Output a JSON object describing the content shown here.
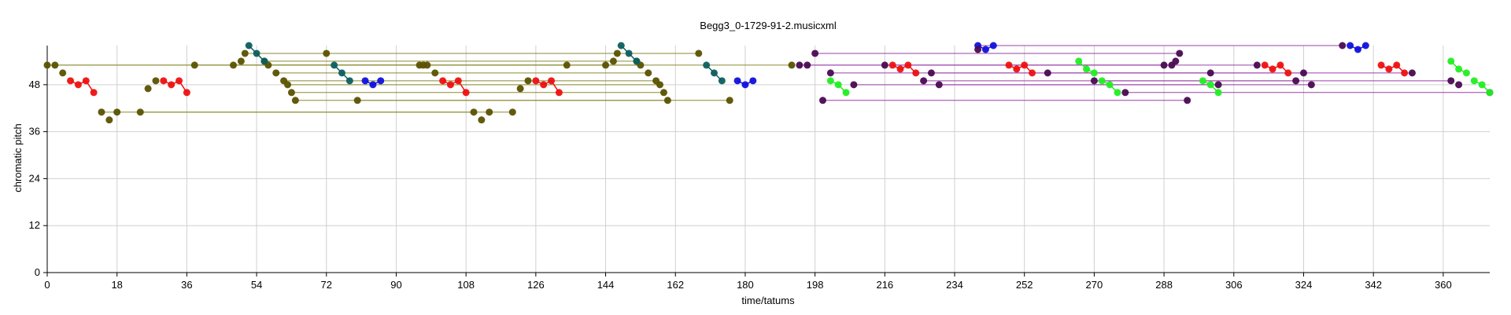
{
  "chart_data": {
    "type": "scatter",
    "title": "Begg3_0-1729-91-2.musicxml",
    "xlabel": "time/tatums",
    "ylabel": "chromatic pitch",
    "xlim": [
      0,
      372
    ],
    "ylim": [
      0,
      58
    ],
    "xticks": [
      0,
      18,
      36,
      54,
      72,
      90,
      108,
      126,
      144,
      162,
      180,
      198,
      216,
      234,
      252,
      270,
      288,
      306,
      324,
      342,
      360
    ],
    "yticks": [
      0,
      12,
      24,
      36,
      48
    ],
    "grid": true,
    "colors": {
      "olive": "#5a5200",
      "olive_line": "#8a8a30",
      "teal": "#0c5f5f",
      "red": "#ee1111",
      "blue": "#1111dd",
      "purple": "#4a0a52",
      "purple_line": "#9a40a8",
      "green": "#22ee22"
    },
    "series": [
      {
        "color_key": "olive",
        "points": [
          [
            0,
            53
          ],
          [
            2,
            53
          ],
          [
            4,
            51
          ],
          [
            14,
            41
          ],
          [
            16,
            39
          ],
          [
            18,
            41
          ],
          [
            24,
            41
          ],
          [
            26,
            47
          ],
          [
            28,
            49
          ],
          [
            38,
            53
          ],
          [
            48,
            53
          ],
          [
            50,
            54
          ],
          [
            51,
            56
          ],
          [
            56,
            54
          ],
          [
            57,
            53
          ],
          [
            59,
            51
          ],
          [
            61,
            49
          ],
          [
            62,
            48
          ],
          [
            63,
            46
          ],
          [
            64,
            44
          ],
          [
            72,
            56
          ],
          [
            80,
            44
          ],
          [
            96,
            53
          ],
          [
            97,
            53
          ],
          [
            98,
            53
          ],
          [
            100,
            51
          ],
          [
            110,
            41
          ],
          [
            112,
            39
          ],
          [
            114,
            41
          ],
          [
            120,
            41
          ],
          [
            122,
            47
          ],
          [
            124,
            49
          ],
          [
            134,
            53
          ],
          [
            144,
            53
          ],
          [
            146,
            54
          ],
          [
            147,
            56
          ],
          [
            152,
            54
          ],
          [
            153,
            53
          ],
          [
            155,
            51
          ],
          [
            157,
            49
          ],
          [
            158,
            48
          ],
          [
            159,
            46
          ],
          [
            160,
            44
          ],
          [
            168,
            56
          ],
          [
            176,
            44
          ],
          [
            192,
            53
          ]
        ]
      },
      {
        "color_key": "teal",
        "points": [
          [
            52,
            58
          ],
          [
            54,
            56
          ],
          [
            56,
            54
          ],
          [
            74,
            53
          ],
          [
            76,
            51
          ],
          [
            78,
            49
          ],
          [
            148,
            58
          ],
          [
            150,
            56
          ],
          [
            152,
            54
          ],
          [
            170,
            53
          ],
          [
            172,
            51
          ],
          [
            174,
            49
          ]
        ]
      },
      {
        "color_key": "red",
        "points": [
          [
            6,
            49
          ],
          [
            8,
            48
          ],
          [
            10,
            49
          ],
          [
            12,
            46
          ],
          [
            30,
            49
          ],
          [
            32,
            48
          ],
          [
            34,
            49
          ],
          [
            36,
            46
          ],
          [
            102,
            49
          ],
          [
            104,
            48
          ],
          [
            106,
            49
          ],
          [
            108,
            46
          ],
          [
            126,
            49
          ],
          [
            128,
            48
          ],
          [
            130,
            49
          ],
          [
            132,
            46
          ],
          [
            218,
            53
          ],
          [
            220,
            52
          ],
          [
            222,
            53
          ],
          [
            224,
            51
          ],
          [
            248,
            53
          ],
          [
            250,
            52
          ],
          [
            252,
            53
          ],
          [
            254,
            51
          ],
          [
            314,
            53
          ],
          [
            316,
            52
          ],
          [
            318,
            53
          ],
          [
            320,
            51
          ],
          [
            344,
            53
          ],
          [
            346,
            52
          ],
          [
            348,
            53
          ],
          [
            350,
            51
          ]
        ]
      },
      {
        "color_key": "blue",
        "points": [
          [
            82,
            49
          ],
          [
            84,
            48
          ],
          [
            86,
            49
          ],
          [
            178,
            49
          ],
          [
            180,
            48
          ],
          [
            182,
            49
          ],
          [
            240,
            58
          ],
          [
            242,
            57
          ],
          [
            244,
            58
          ],
          [
            336,
            58
          ],
          [
            338,
            57
          ],
          [
            340,
            58
          ]
        ]
      },
      {
        "color_key": "purple",
        "points": [
          [
            194,
            53
          ],
          [
            196,
            53
          ],
          [
            198,
            56
          ],
          [
            200,
            44
          ],
          [
            202,
            51
          ],
          [
            208,
            48
          ],
          [
            216,
            53
          ],
          [
            226,
            49
          ],
          [
            228,
            51
          ],
          [
            230,
            48
          ],
          [
            240,
            57
          ],
          [
            258,
            51
          ],
          [
            270,
            49
          ],
          [
            278,
            46
          ],
          [
            288,
            53
          ],
          [
            290,
            53
          ],
          [
            291,
            54
          ],
          [
            292,
            56
          ],
          [
            294,
            44
          ],
          [
            300,
            51
          ],
          [
            302,
            48
          ],
          [
            312,
            53
          ],
          [
            322,
            49
          ],
          [
            324,
            51
          ],
          [
            326,
            48
          ],
          [
            334,
            58
          ],
          [
            352,
            51
          ],
          [
            362,
            49
          ],
          [
            364,
            48
          ],
          [
            372,
            46
          ]
        ]
      },
      {
        "color_key": "green",
        "points": [
          [
            202,
            49
          ],
          [
            204,
            48
          ],
          [
            206,
            46
          ],
          [
            266,
            54
          ],
          [
            268,
            52
          ],
          [
            270,
            51
          ],
          [
            272,
            49
          ],
          [
            274,
            48
          ],
          [
            276,
            46
          ],
          [
            298,
            49
          ],
          [
            300,
            48
          ],
          [
            302,
            46
          ],
          [
            362,
            54
          ],
          [
            364,
            52
          ],
          [
            366,
            51
          ],
          [
            368,
            49
          ],
          [
            370,
            48
          ],
          [
            372,
            46
          ]
        ]
      }
    ],
    "sustain_lines": [
      {
        "color_key": "olive_line",
        "x0": 0,
        "x1": 192,
        "y": 53
      },
      {
        "color_key": "olive_line",
        "x0": 2,
        "x1": 96,
        "y": 53
      },
      {
        "color_key": "olive_line",
        "x0": 14,
        "x1": 120,
        "y": 41
      },
      {
        "color_key": "olive_line",
        "x0": 24,
        "x1": 110,
        "y": 41
      },
      {
        "color_key": "olive_line",
        "x0": 38,
        "x1": 134,
        "y": 53
      },
      {
        "color_key": "olive_line",
        "x0": 48,
        "x1": 144,
        "y": 53
      },
      {
        "color_key": "olive_line",
        "x0": 51,
        "x1": 147,
        "y": 56
      },
      {
        "color_key": "olive_line",
        "x0": 56,
        "x1": 152,
        "y": 54
      },
      {
        "color_key": "olive_line",
        "x0": 57,
        "x1": 153,
        "y": 53
      },
      {
        "color_key": "olive_line",
        "x0": 59,
        "x1": 155,
        "y": 51
      },
      {
        "color_key": "olive_line",
        "x0": 61,
        "x1": 157,
        "y": 49
      },
      {
        "color_key": "olive_line",
        "x0": 62,
        "x1": 158,
        "y": 48
      },
      {
        "color_key": "olive_line",
        "x0": 63,
        "x1": 159,
        "y": 46
      },
      {
        "color_key": "olive_line",
        "x0": 64,
        "x1": 160,
        "y": 44
      },
      {
        "color_key": "olive_line",
        "x0": 72,
        "x1": 168,
        "y": 56
      },
      {
        "color_key": "olive_line",
        "x0": 80,
        "x1": 176,
        "y": 44
      },
      {
        "color_key": "purple_line",
        "x0": 194,
        "x1": 290,
        "y": 53
      },
      {
        "color_key": "purple_line",
        "x0": 196,
        "x1": 288,
        "y": 53
      },
      {
        "color_key": "purple_line",
        "x0": 198,
        "x1": 292,
        "y": 56
      },
      {
        "color_key": "purple_line",
        "x0": 200,
        "x1": 294,
        "y": 44
      },
      {
        "color_key": "purple_line",
        "x0": 202,
        "x1": 300,
        "y": 51
      },
      {
        "color_key": "purple_line",
        "x0": 208,
        "x1": 302,
        "y": 48
      },
      {
        "color_key": "purple_line",
        "x0": 216,
        "x1": 312,
        "y": 53
      },
      {
        "color_key": "purple_line",
        "x0": 226,
        "x1": 322,
        "y": 49
      },
      {
        "color_key": "purple_line",
        "x0": 228,
        "x1": 324,
        "y": 51
      },
      {
        "color_key": "purple_line",
        "x0": 230,
        "x1": 326,
        "y": 48
      },
      {
        "color_key": "purple_line",
        "x0": 240,
        "x1": 334,
        "y": 58
      },
      {
        "color_key": "purple_line",
        "x0": 258,
        "x1": 352,
        "y": 51
      },
      {
        "color_key": "purple_line",
        "x0": 270,
        "x1": 362,
        "y": 49
      },
      {
        "color_key": "purple_line",
        "x0": 278,
        "x1": 372,
        "y": 46
      }
    ],
    "segments": [
      {
        "color_key": "red",
        "points": [
          [
            6,
            49
          ],
          [
            8,
            48
          ],
          [
            10,
            49
          ],
          [
            12,
            46
          ]
        ]
      },
      {
        "color_key": "red",
        "points": [
          [
            30,
            49
          ],
          [
            32,
            48
          ],
          [
            34,
            49
          ],
          [
            36,
            46
          ]
        ]
      },
      {
        "color_key": "red",
        "points": [
          [
            102,
            49
          ],
          [
            104,
            48
          ],
          [
            106,
            49
          ],
          [
            108,
            46
          ]
        ]
      },
      {
        "color_key": "red",
        "points": [
          [
            126,
            49
          ],
          [
            128,
            48
          ],
          [
            130,
            49
          ],
          [
            132,
            46
          ]
        ]
      },
      {
        "color_key": "red",
        "points": [
          [
            218,
            53
          ],
          [
            220,
            52
          ],
          [
            222,
            53
          ],
          [
            224,
            51
          ]
        ]
      },
      {
        "color_key": "red",
        "points": [
          [
            248,
            53
          ],
          [
            250,
            52
          ],
          [
            252,
            53
          ],
          [
            254,
            51
          ]
        ]
      },
      {
        "color_key": "red",
        "points": [
          [
            314,
            53
          ],
          [
            316,
            52
          ],
          [
            318,
            53
          ],
          [
            320,
            51
          ]
        ]
      },
      {
        "color_key": "red",
        "points": [
          [
            344,
            53
          ],
          [
            346,
            52
          ],
          [
            348,
            53
          ],
          [
            350,
            51
          ]
        ]
      },
      {
        "color_key": "blue",
        "points": [
          [
            82,
            49
          ],
          [
            84,
            48
          ],
          [
            86,
            49
          ]
        ]
      },
      {
        "color_key": "blue",
        "points": [
          [
            178,
            49
          ],
          [
            180,
            48
          ],
          [
            182,
            49
          ]
        ]
      },
      {
        "color_key": "blue",
        "points": [
          [
            240,
            58
          ],
          [
            242,
            57
          ],
          [
            244,
            58
          ]
        ]
      },
      {
        "color_key": "blue",
        "points": [
          [
            336,
            58
          ],
          [
            338,
            57
          ],
          [
            340,
            58
          ]
        ]
      },
      {
        "color_key": "teal",
        "points": [
          [
            52,
            58
          ],
          [
            54,
            56
          ],
          [
            56,
            54
          ]
        ]
      },
      {
        "color_key": "teal",
        "points": [
          [
            74,
            53
          ],
          [
            76,
            51
          ],
          [
            78,
            49
          ]
        ]
      },
      {
        "color_key": "teal",
        "points": [
          [
            148,
            58
          ],
          [
            150,
            56
          ],
          [
            152,
            54
          ]
        ]
      },
      {
        "color_key": "teal",
        "points": [
          [
            170,
            53
          ],
          [
            172,
            51
          ],
          [
            174,
            49
          ]
        ]
      },
      {
        "color_key": "green",
        "points": [
          [
            202,
            49
          ],
          [
            204,
            48
          ],
          [
            206,
            46
          ]
        ]
      },
      {
        "color_key": "green",
        "points": [
          [
            266,
            54
          ],
          [
            268,
            52
          ],
          [
            270,
            51
          ]
        ]
      },
      {
        "color_key": "green",
        "points": [
          [
            272,
            49
          ],
          [
            274,
            48
          ],
          [
            276,
            46
          ]
        ]
      },
      {
        "color_key": "green",
        "points": [
          [
            298,
            49
          ],
          [
            300,
            48
          ],
          [
            302,
            46
          ]
        ]
      },
      {
        "color_key": "green",
        "points": [
          [
            362,
            54
          ],
          [
            364,
            52
          ],
          [
            366,
            51
          ]
        ]
      },
      {
        "color_key": "green",
        "points": [
          [
            368,
            49
          ],
          [
            370,
            48
          ],
          [
            372,
            46
          ]
        ]
      }
    ]
  }
}
